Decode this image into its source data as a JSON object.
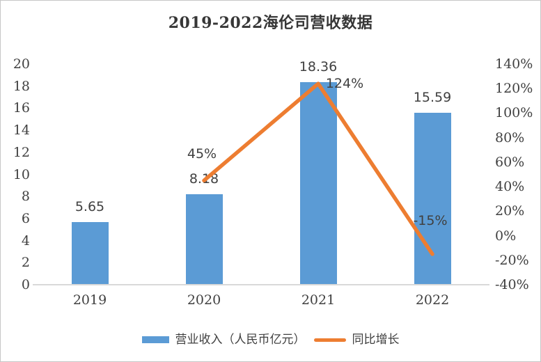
{
  "title": "2019-2022海伦司营收数据",
  "colors": {
    "bar": "#5b9bd5",
    "line": "#ed7d31",
    "label_text": "#404040",
    "title_text": "#363636",
    "axis_line": "#d9d9d9"
  },
  "chart_data": {
    "type": "bar",
    "combo": "bar+line",
    "title": "2019-2022海伦司营收数据",
    "categories": [
      "2019",
      "2020",
      "2021",
      "2022"
    ],
    "series": [
      {
        "name": "营业收入（人民币亿元）",
        "type": "bar",
        "axis": "left",
        "color": "#5b9bd5",
        "values": [
          5.65,
          8.18,
          18.36,
          15.59
        ],
        "data_labels": [
          "5.65",
          "8.18",
          "18.36",
          "15.59"
        ]
      },
      {
        "name": "同比增长",
        "type": "line",
        "axis": "right",
        "color": "#ed7d31",
        "values": [
          null,
          45,
          124,
          -15
        ],
        "data_labels": [
          "",
          "45%",
          "124%",
          "-15%"
        ],
        "label_offsets": [
          [
            0,
            0
          ],
          [
            -3,
            -38
          ],
          [
            38,
            0
          ],
          [
            -3,
            -48
          ]
        ]
      }
    ],
    "left_axis": {
      "min": 0,
      "max": 20,
      "step": 2,
      "tick_labels": [
        "0",
        "2",
        "4",
        "6",
        "8",
        "10",
        "12",
        "14",
        "16",
        "18",
        "20"
      ]
    },
    "right_axis": {
      "min": -40,
      "max": 140,
      "step": 20,
      "tick_labels": [
        "-40%",
        "-20%",
        "0%",
        "20%",
        "40%",
        "60%",
        "80%",
        "100%",
        "120%",
        "140%"
      ]
    },
    "grid": false,
    "legend_position": "bottom"
  }
}
